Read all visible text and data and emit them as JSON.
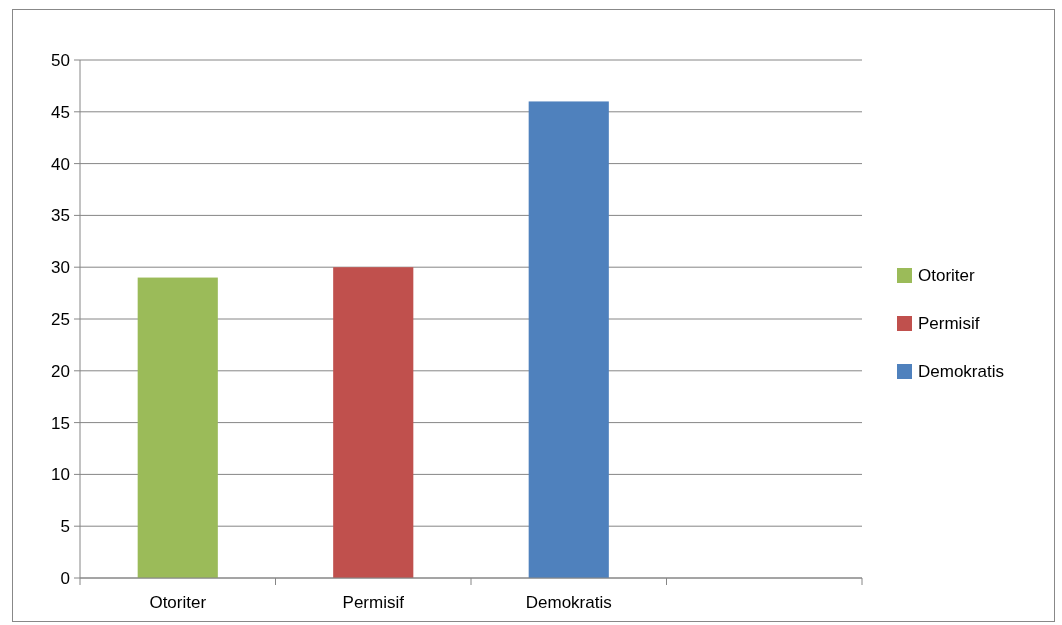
{
  "chart_data": {
    "type": "bar",
    "categories": [
      "Otoriter",
      "Permisif",
      "Demokratis",
      null
    ],
    "series": [
      {
        "name": "Otoriter",
        "color": "#9bbb59",
        "values": [
          29,
          null,
          null,
          null
        ]
      },
      {
        "name": "Permisif",
        "color": "#c0504d",
        "values": [
          null,
          30,
          null,
          null
        ]
      },
      {
        "name": "Demokratis",
        "color": "#4f81bd",
        "values": [
          null,
          null,
          46,
          null
        ]
      }
    ],
    "ylim": [
      0,
      50
    ],
    "yticks": [
      0,
      5,
      10,
      15,
      20,
      25,
      30,
      35,
      40,
      45,
      50
    ],
    "grid": "y",
    "legend": "right"
  }
}
